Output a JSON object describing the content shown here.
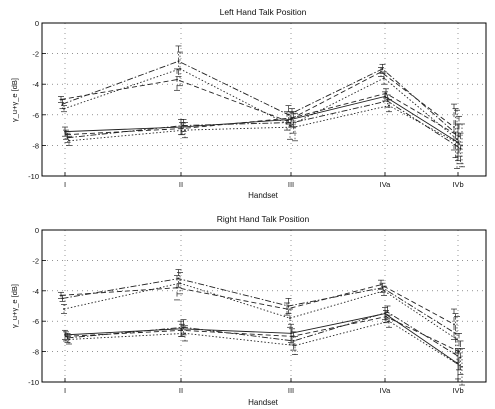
{
  "chart_data": [
    {
      "type": "line",
      "title": "Left Hand Talk Position",
      "xlabel": "Handset",
      "ylabel": "γ_u+γ_e [dB]",
      "categories": [
        "I",
        "II",
        "III",
        "IVa",
        "IVb"
      ],
      "ylim": [
        -10,
        0
      ],
      "yticks": [
        0,
        -2,
        -4,
        -6,
        -8,
        -10
      ],
      "grid": true,
      "series": [
        {
          "style": "dashed",
          "values": [
            -5.0,
            -3.7,
            -6.4,
            -3.2,
            -6.8
          ],
          "err": [
            0.2,
            0.7,
            0.6,
            0.3,
            1.5
          ]
        },
        {
          "style": "dashdot",
          "values": [
            -5.3,
            -2.5,
            -6.0,
            -3.0,
            -7.2
          ],
          "err": [
            0.3,
            1.0,
            0.6,
            0.3,
            1.6
          ]
        },
        {
          "style": "dotted",
          "values": [
            -5.6,
            -3.0,
            -6.7,
            -3.6,
            -7.6
          ],
          "err": [
            0.2,
            1.1,
            0.9,
            0.4,
            1.9
          ]
        },
        {
          "style": "solid",
          "values": [
            -7.1,
            -6.8,
            -6.3,
            -4.8,
            -7.8
          ],
          "err": [
            0.3,
            0.5,
            0.5,
            0.3,
            1.2
          ]
        },
        {
          "style": "dashed",
          "values": [
            -7.3,
            -6.9,
            -6.2,
            -4.6,
            -7.4
          ],
          "err": [
            0.3,
            0.4,
            0.6,
            0.3,
            1.3
          ]
        },
        {
          "style": "dashdot",
          "values": [
            -7.5,
            -6.7,
            -6.5,
            -5.1,
            -8.2
          ],
          "err": [
            0.3,
            0.4,
            0.7,
            0.4,
            1.0
          ]
        },
        {
          "style": "dotted",
          "values": [
            -7.7,
            -7.0,
            -6.8,
            -5.4,
            -8.0
          ],
          "err": [
            0.3,
            0.5,
            0.9,
            0.4,
            1.4
          ]
        }
      ]
    },
    {
      "type": "line",
      "title": "Right Hand Talk Position",
      "xlabel": "Handset",
      "ylabel": "γ_u+γ_e [dB]",
      "categories": [
        "I",
        "II",
        "III",
        "IVa",
        "IVb"
      ],
      "ylim": [
        -10,
        0
      ],
      "yticks": [
        0,
        -2,
        -4,
        -6,
        -8,
        -10
      ],
      "grid": true,
      "series": [
        {
          "style": "dashed",
          "values": [
            -4.3,
            -3.8,
            -5.2,
            -3.6,
            -6.2
          ],
          "err": [
            0.2,
            0.8,
            0.4,
            0.3,
            1.0
          ]
        },
        {
          "style": "dashdot",
          "values": [
            -4.5,
            -3.2,
            -5.0,
            -3.8,
            -6.8
          ],
          "err": [
            0.2,
            0.6,
            0.5,
            0.3,
            1.3
          ]
        },
        {
          "style": "dotted",
          "values": [
            -5.2,
            -3.5,
            -5.8,
            -4.0,
            -7.2
          ],
          "err": [
            0.3,
            0.7,
            0.6,
            0.3,
            1.5
          ]
        },
        {
          "style": "solid",
          "values": [
            -6.9,
            -6.5,
            -6.8,
            -5.5,
            -8.8
          ],
          "err": [
            0.3,
            0.5,
            0.6,
            0.4,
            1.0
          ]
        },
        {
          "style": "dashed",
          "values": [
            -7.0,
            -6.6,
            -7.0,
            -5.7,
            -8.0
          ],
          "err": [
            0.3,
            0.4,
            0.5,
            0.4,
            1.2
          ]
        },
        {
          "style": "dashdot",
          "values": [
            -7.1,
            -6.4,
            -7.3,
            -5.4,
            -8.4
          ],
          "err": [
            0.3,
            0.5,
            0.6,
            0.4,
            1.1
          ]
        },
        {
          "style": "dotted",
          "values": [
            -7.2,
            -6.8,
            -7.6,
            -6.0,
            -9.0
          ],
          "err": [
            0.3,
            0.5,
            0.6,
            0.4,
            1.2
          ]
        }
      ]
    }
  ]
}
